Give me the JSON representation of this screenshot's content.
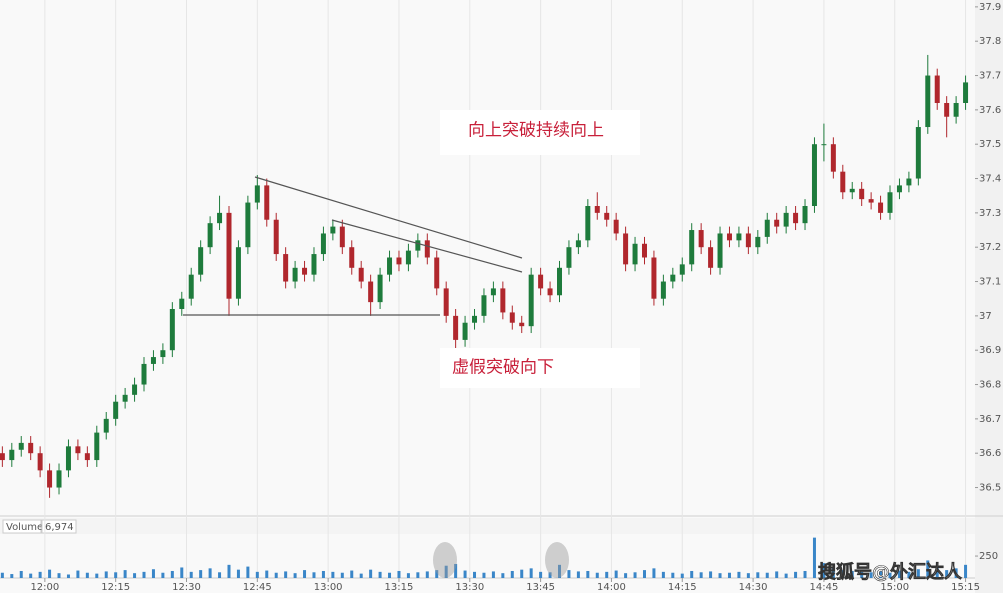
{
  "chart_data": {
    "type": "candlestick",
    "x": [
      711,
      713,
      715,
      717,
      719,
      721,
      723,
      725,
      727,
      729,
      731,
      733,
      735,
      737,
      739,
      741,
      743,
      745,
      747,
      749,
      751,
      753,
      755,
      757,
      759,
      761,
      763,
      765,
      767,
      769,
      771,
      773,
      775,
      777,
      779,
      781,
      783,
      785,
      787,
      789,
      791,
      793,
      795,
      797,
      799,
      801,
      803,
      805,
      807,
      809,
      811,
      813,
      815,
      817,
      819,
      821,
      823,
      825,
      827,
      829,
      831,
      833,
      835,
      837,
      839,
      841,
      843,
      845,
      847,
      849,
      851,
      853,
      855,
      857,
      859,
      861,
      863,
      865,
      867,
      869,
      871,
      873,
      875,
      877,
      879,
      881,
      883,
      885,
      887,
      889,
      891,
      893,
      895,
      897,
      899,
      901,
      903,
      905,
      907,
      909,
      911,
      913,
      915
    ],
    "open": [
      36.6,
      36.58,
      36.61,
      36.63,
      36.6,
      36.55,
      36.5,
      36.55,
      36.62,
      36.6,
      36.58,
      36.66,
      36.7,
      36.75,
      36.77,
      36.8,
      36.86,
      36.88,
      36.9,
      37.02,
      37.05,
      37.12,
      37.2,
      37.27,
      37.3,
      37.05,
      37.2,
      37.33,
      37.38,
      37.28,
      37.18,
      37.1,
      37.14,
      37.12,
      37.18,
      37.24,
      37.26,
      37.2,
      37.14,
      37.1,
      37.04,
      37.12,
      37.17,
      37.15,
      37.19,
      37.22,
      37.17,
      37.08,
      37.0,
      36.93,
      36.98,
      37.0,
      37.06,
      37.08,
      37.01,
      36.98,
      36.97,
      37.12,
      37.08,
      37.06,
      37.14,
      37.2,
      37.22,
      37.32,
      37.3,
      37.28,
      37.24,
      37.15,
      37.21,
      37.17,
      37.05,
      37.1,
      37.12,
      37.15,
      37.25,
      37.2,
      37.14,
      37.24,
      37.22,
      37.24,
      37.2,
      37.23,
      37.28,
      37.26,
      37.3,
      37.27,
      37.32,
      37.5,
      37.5,
      37.42,
      37.36,
      37.37,
      37.34,
      37.33,
      37.3,
      37.36,
      37.38,
      37.4,
      37.55,
      37.7,
      37.62,
      37.58,
      37.62
    ],
    "high": [
      36.62,
      36.63,
      36.65,
      36.65,
      36.62,
      36.57,
      36.57,
      36.64,
      36.64,
      36.62,
      36.68,
      36.72,
      36.77,
      36.79,
      36.82,
      36.88,
      36.9,
      36.92,
      37.04,
      37.07,
      37.14,
      37.22,
      37.29,
      37.35,
      37.32,
      37.22,
      37.35,
      37.41,
      37.4,
      37.3,
      37.2,
      37.16,
      37.16,
      37.2,
      37.26,
      37.28,
      37.28,
      37.22,
      37.16,
      37.12,
      37.14,
      37.19,
      37.19,
      37.21,
      37.24,
      37.24,
      37.19,
      37.1,
      37.02,
      37.0,
      37.02,
      37.08,
      37.1,
      37.1,
      37.03,
      37.0,
      37.14,
      37.14,
      37.1,
      37.16,
      37.22,
      37.24,
      37.34,
      37.36,
      37.32,
      37.3,
      37.26,
      37.23,
      37.23,
      37.19,
      37.12,
      37.14,
      37.17,
      37.27,
      37.27,
      37.22,
      37.26,
      37.26,
      37.26,
      37.26,
      37.25,
      37.3,
      37.3,
      37.32,
      37.32,
      37.34,
      37.52,
      37.56,
      37.52,
      37.44,
      37.39,
      37.39,
      37.36,
      37.35,
      37.38,
      37.4,
      37.42,
      37.57,
      37.76,
      37.72,
      37.64,
      37.64,
      37.7
    ],
    "low": [
      36.56,
      36.56,
      36.59,
      36.58,
      36.53,
      36.47,
      36.48,
      36.53,
      36.58,
      36.56,
      36.56,
      36.64,
      36.68,
      36.73,
      36.75,
      36.78,
      36.84,
      36.86,
      36.88,
      37.0,
      37.03,
      37.1,
      37.18,
      37.25,
      37.0,
      37.03,
      37.18,
      37.31,
      37.26,
      37.16,
      37.08,
      37.08,
      37.1,
      37.1,
      37.16,
      37.22,
      37.18,
      37.12,
      37.08,
      37.0,
      37.02,
      37.1,
      37.13,
      37.13,
      37.17,
      37.15,
      37.06,
      36.98,
      36.9,
      36.91,
      36.96,
      36.98,
      37.04,
      36.99,
      36.96,
      36.95,
      36.95,
      37.06,
      37.04,
      37.04,
      37.12,
      37.18,
      37.2,
      37.28,
      37.26,
      37.22,
      37.13,
      37.13,
      37.15,
      37.03,
      37.03,
      37.08,
      37.1,
      37.13,
      37.18,
      37.12,
      37.12,
      37.2,
      37.2,
      37.18,
      37.18,
      37.21,
      37.24,
      37.24,
      37.25,
      37.25,
      37.3,
      37.45,
      37.4,
      37.34,
      37.34,
      37.32,
      37.31,
      37.28,
      37.28,
      37.34,
      37.36,
      37.38,
      37.53,
      37.6,
      37.52,
      37.56,
      37.6
    ],
    "close": [
      36.58,
      36.61,
      36.63,
      36.6,
      36.55,
      36.5,
      36.55,
      36.62,
      36.6,
      36.58,
      36.66,
      36.7,
      36.75,
      36.77,
      36.8,
      36.86,
      36.88,
      36.9,
      37.02,
      37.05,
      37.12,
      37.2,
      37.27,
      37.3,
      37.05,
      37.2,
      37.33,
      37.38,
      37.28,
      37.18,
      37.1,
      37.14,
      37.12,
      37.18,
      37.24,
      37.26,
      37.2,
      37.14,
      37.1,
      37.04,
      37.12,
      37.17,
      37.15,
      37.19,
      37.22,
      37.17,
      37.08,
      37.0,
      36.93,
      36.98,
      37.0,
      37.06,
      37.08,
      37.01,
      36.98,
      36.97,
      37.12,
      37.08,
      37.06,
      37.14,
      37.2,
      37.22,
      37.32,
      37.3,
      37.28,
      37.24,
      37.15,
      37.21,
      37.17,
      37.05,
      37.1,
      37.12,
      37.15,
      37.25,
      37.2,
      37.14,
      37.24,
      37.22,
      37.24,
      37.2,
      37.23,
      37.28,
      37.26,
      37.3,
      37.27,
      37.32,
      37.5,
      37.5,
      37.42,
      37.36,
      37.37,
      37.34,
      37.33,
      37.3,
      37.36,
      37.38,
      37.4,
      37.55,
      37.7,
      37.62,
      37.58,
      37.62,
      37.68
    ],
    "up_color": "#1e7b3c",
    "down_color": "#b0272d",
    "xlim": [
      710.5,
      917
    ],
    "xticks": [
      {
        "value": 720,
        "label": "12:00"
      },
      {
        "value": 735,
        "label": "12:15"
      },
      {
        "value": 750,
        "label": "12:30"
      },
      {
        "value": 765,
        "label": "12:45"
      },
      {
        "value": 780,
        "label": "13:00"
      },
      {
        "value": 795,
        "label": "13:15"
      },
      {
        "value": 810,
        "label": "13:30"
      },
      {
        "value": 825,
        "label": "13:45"
      },
      {
        "value": 840,
        "label": "14:00"
      },
      {
        "value": 855,
        "label": "14:15"
      },
      {
        "value": 870,
        "label": "14:30"
      },
      {
        "value": 885,
        "label": "14:45"
      },
      {
        "value": 900,
        "label": "15:00"
      },
      {
        "value": 915,
        "label": "15:15"
      }
    ],
    "ylim": [
      36.42,
      37.92
    ],
    "yticks": [
      36.5,
      36.6,
      36.7,
      36.8,
      36.9,
      37,
      37.1,
      37.2,
      37.3,
      37.4,
      37.5,
      37.6,
      37.7,
      37.8,
      37.9
    ],
    "grid": true,
    "annotations": [
      "向上突破持续向上",
      "虚假突破向下"
    ],
    "volume": {
      "name": "Volume",
      "readout": {
        "value": 6974,
        "label": "6,974"
      },
      "color": "#3a86c8",
      "values": [
        60,
        45,
        80,
        50,
        70,
        95,
        55,
        40,
        85,
        60,
        50,
        75,
        65,
        90,
        55,
        70,
        100,
        60,
        80,
        120,
        70,
        90,
        110,
        65,
        150,
        95,
        130,
        70,
        85,
        60,
        75,
        55,
        90,
        65,
        80,
        70,
        60,
        85,
        50,
        95,
        70,
        60,
        80,
        55,
        65,
        75,
        90,
        140,
        160,
        85,
        70,
        60,
        75,
        55,
        80,
        95,
        110,
        70,
        65,
        150,
        90,
        75,
        80,
        60,
        70,
        85,
        55,
        65,
        90,
        110,
        70,
        60,
        50,
        80,
        65,
        75,
        55,
        60,
        70,
        55,
        65,
        60,
        75,
        50,
        70,
        80,
        460,
        170,
        120,
        90,
        80,
        70,
        65,
        75,
        60,
        85,
        70,
        100,
        200,
        120,
        90,
        110,
        150
      ],
      "ylim": [
        0,
        490
      ],
      "yticks": [
        250
      ]
    },
    "watermark": "搜狐号@外汇达人"
  }
}
